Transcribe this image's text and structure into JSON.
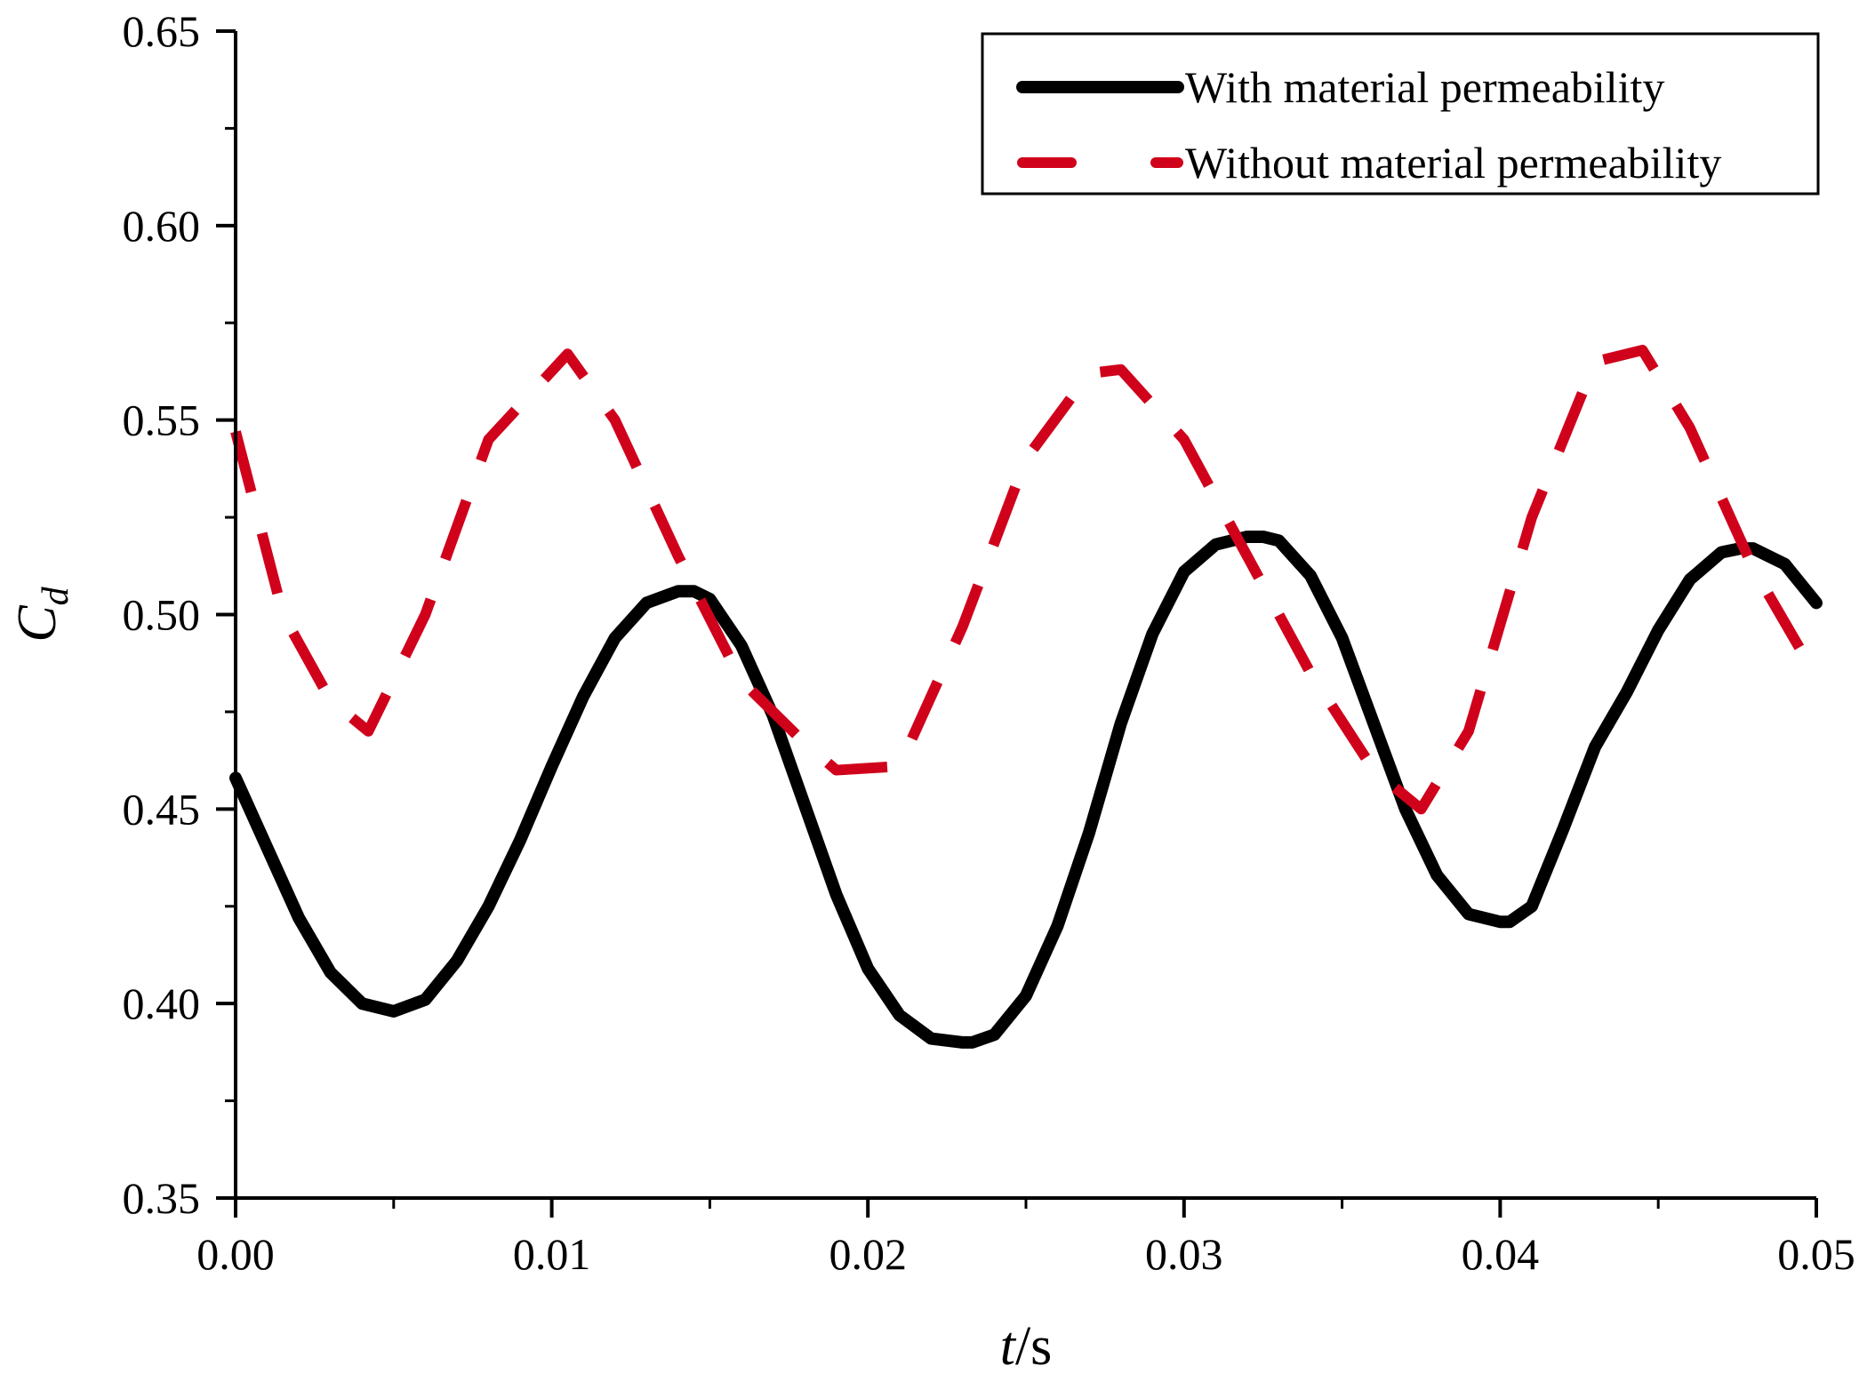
{
  "chart_data": {
    "type": "line",
    "title": "",
    "xlabel": {
      "var": "t",
      "unit": "/s"
    },
    "ylabel": {
      "var": "C",
      "sub": "d"
    },
    "xlim": [
      0.0,
      0.05
    ],
    "ylim": [
      0.35,
      0.65
    ],
    "x_major_ticks": [
      "0.00",
      "0.01",
      "0.02",
      "0.03",
      "0.04",
      "0.05"
    ],
    "x_minor_step": 0.005,
    "y_major_ticks": [
      "0.35",
      "0.40",
      "0.45",
      "0.50",
      "0.55",
      "0.60",
      "0.65"
    ],
    "y_minor_step": 0.025,
    "grid": false,
    "legend_position": "top-right",
    "series": [
      {
        "name": "With material permeability",
        "color": "#000000",
        "style": "solid",
        "x": [
          0.0,
          0.001,
          0.002,
          0.003,
          0.004,
          0.005,
          0.006,
          0.007,
          0.008,
          0.009,
          0.01,
          0.011,
          0.012,
          0.013,
          0.014,
          0.0145,
          0.015,
          0.016,
          0.017,
          0.018,
          0.019,
          0.02,
          0.021,
          0.022,
          0.023,
          0.0233,
          0.024,
          0.025,
          0.026,
          0.027,
          0.028,
          0.029,
          0.03,
          0.031,
          0.032,
          0.0325,
          0.033,
          0.034,
          0.035,
          0.036,
          0.037,
          0.038,
          0.039,
          0.04,
          0.0403,
          0.041,
          0.042,
          0.043,
          0.044,
          0.045,
          0.046,
          0.047,
          0.0476,
          0.048,
          0.049,
          0.05
        ],
        "values": [
          0.458,
          0.44,
          0.422,
          0.408,
          0.4,
          0.398,
          0.401,
          0.411,
          0.425,
          0.442,
          0.461,
          0.479,
          0.494,
          0.503,
          0.506,
          0.506,
          0.504,
          0.492,
          0.474,
          0.451,
          0.428,
          0.409,
          0.397,
          0.391,
          0.39,
          0.39,
          0.392,
          0.402,
          0.42,
          0.444,
          0.472,
          0.495,
          0.511,
          0.518,
          0.52,
          0.52,
          0.519,
          0.51,
          0.494,
          0.472,
          0.45,
          0.433,
          0.423,
          0.421,
          0.421,
          0.425,
          0.445,
          0.466,
          0.48,
          0.496,
          0.509,
          0.516,
          0.517,
          0.517,
          0.513,
          0.503
        ]
      },
      {
        "name": "Without material permeability",
        "color": "#d0021b",
        "style": "dashed",
        "x": [
          0.0,
          0.0015,
          0.003,
          0.0042,
          0.006,
          0.008,
          0.0105,
          0.012,
          0.014,
          0.016,
          0.018,
          0.019,
          0.021,
          0.023,
          0.025,
          0.027,
          0.028,
          0.03,
          0.032,
          0.034,
          0.036,
          0.0375,
          0.039,
          0.041,
          0.043,
          0.0445,
          0.046,
          0.048,
          0.05
        ],
        "values": [
          0.547,
          0.5,
          0.478,
          0.47,
          0.5,
          0.545,
          0.567,
          0.55,
          0.515,
          0.483,
          0.467,
          0.46,
          0.461,
          0.497,
          0.54,
          0.562,
          0.563,
          0.545,
          0.515,
          0.485,
          0.46,
          0.45,
          0.47,
          0.525,
          0.565,
          0.568,
          0.548,
          0.512,
          0.484
        ]
      }
    ]
  }
}
